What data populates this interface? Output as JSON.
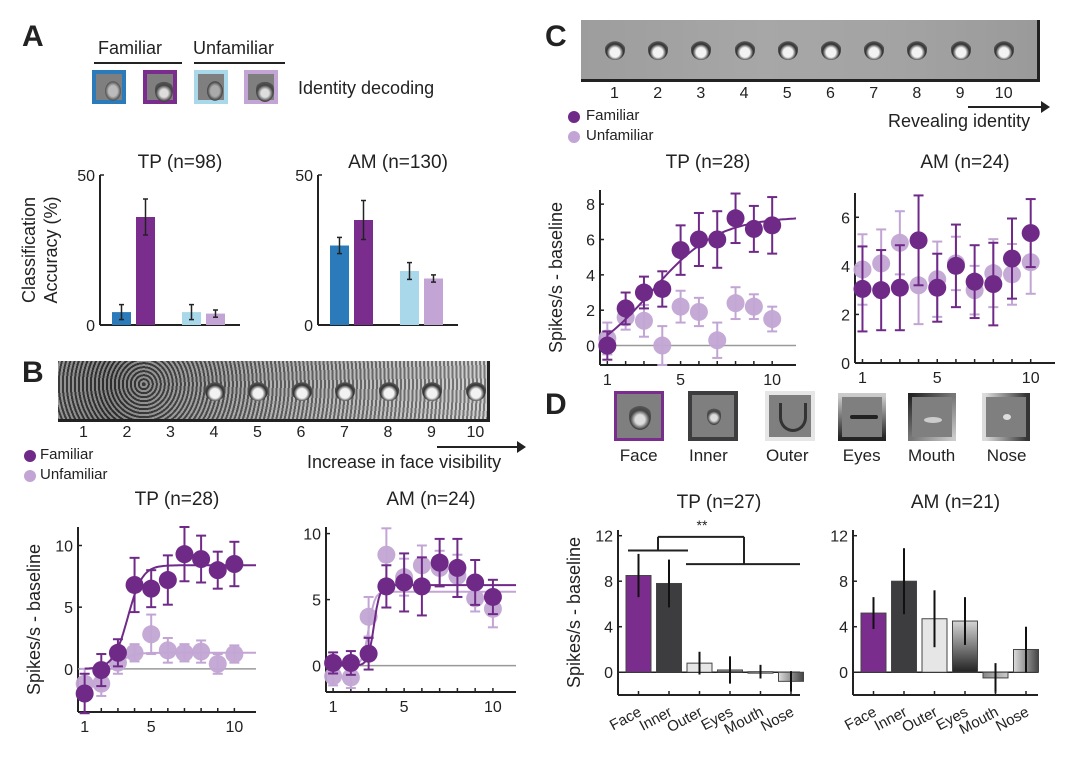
{
  "colors": {
    "familiar_human": "#2b7bba",
    "familiar_monkey": "#7b2d8e",
    "unfamiliar_human": "#a8d8ea",
    "unfamiliar_monkey": "#c2a5d4",
    "familiar_dot": "#6f2a88",
    "unfamiliar_dot": "#c2a5d4",
    "inner": "#3d3d40",
    "outer": "#e6e6e6",
    "baseline": "#999999"
  },
  "panelA": {
    "letter": "A",
    "group_familiar": "Familiar",
    "group_unfamiliar": "Unfamiliar",
    "task_label": "Identity decoding",
    "thumbs": [
      "human-face-icon",
      "monkey-face-icon",
      "human-face-icon",
      "monkey-face-icon"
    ]
  },
  "panelB": {
    "letter": "B",
    "strip_numbers": [
      "1",
      "2",
      "3",
      "4",
      "5",
      "6",
      "7",
      "8",
      "9",
      "10"
    ],
    "legend_familiar": "Familiar",
    "legend_unfamiliar": "Unfamiliar",
    "arrow_label": "Increase in face visibility"
  },
  "panelC": {
    "letter": "C",
    "strip_numbers": [
      "1",
      "2",
      "3",
      "4",
      "5",
      "6",
      "7",
      "8",
      "9",
      "10"
    ],
    "legend_familiar": "Familiar",
    "legend_unfamiliar": "Unfamiliar",
    "arrow_label": "Revealing identity"
  },
  "panelD": {
    "letter": "D",
    "part_labels": [
      "Face",
      "Inner",
      "Outer",
      "Eyes",
      "Mouth",
      "Nose"
    ],
    "significance": "**"
  },
  "chart_data": [
    {
      "id": "A-TP",
      "type": "bar",
      "title": "TP (n=98)",
      "ylabel": "Classification Accuracy (%)",
      "ylim": [
        0,
        50
      ],
      "yticks": [
        0,
        50
      ],
      "categories": [
        "Familiar human",
        "Familiar monkey",
        "Unfamiliar human",
        "Unfamiliar monkey"
      ],
      "values": [
        4.3,
        36,
        4.3,
        3.8
      ],
      "errors": [
        2.5,
        6,
        2.5,
        1.2
      ],
      "bar_colors": [
        "#2b7bba",
        "#7b2d8e",
        "#a8d8ea",
        "#c2a5d4"
      ]
    },
    {
      "id": "A-AM",
      "type": "bar",
      "title": "AM (n=130)",
      "ylabel": "",
      "ylim": [
        0,
        50
      ],
      "yticks": [
        0,
        50
      ],
      "categories": [
        "Familiar human",
        "Familiar monkey",
        "Unfamiliar human",
        "Unfamiliar monkey"
      ],
      "values": [
        26.5,
        35,
        18,
        15.5
      ],
      "errors": [
        2.7,
        6.5,
        2.8,
        1.2
      ],
      "bar_colors": [
        "#2b7bba",
        "#7b2d8e",
        "#a8d8ea",
        "#c2a5d4"
      ]
    },
    {
      "id": "B-TP",
      "type": "scatter",
      "title": "TP (n=28)",
      "ylabel": "Spikes/s - baseline",
      "xlim": [
        0.6,
        11.3
      ],
      "ylim": [
        -3.5,
        11.5
      ],
      "xticks": [
        1,
        5,
        10
      ],
      "yticks": [
        0,
        5,
        10
      ],
      "x": [
        1,
        2,
        3,
        4,
        5,
        6,
        7,
        8,
        9,
        10
      ],
      "series": [
        {
          "name": "Unfamiliar",
          "values": [
            -1.2,
            -1.2,
            0.5,
            1.3,
            2.8,
            1.5,
            1.3,
            1.4,
            0.4,
            1.2
          ],
          "errors": [
            1.2,
            1.0,
            0.9,
            0.7,
            1.6,
            1.0,
            0.7,
            0.9,
            0.8,
            0.7
          ],
          "fit": {
            "base": 0,
            "top": 1.3,
            "mid": 3.2,
            "slope": 2.5
          }
        },
        {
          "name": "Familiar",
          "values": [
            -2.0,
            -0.1,
            1.3,
            6.8,
            6.5,
            7.2,
            9.3,
            8.9,
            8.0,
            8.5
          ],
          "errors": [
            1.6,
            1.3,
            1.1,
            2.2,
            1.5,
            2.0,
            2.2,
            1.9,
            1.5,
            1.8
          ],
          "fit": {
            "base": 0,
            "top": 8.4,
            "mid": 3.6,
            "slope": 2.3
          }
        }
      ],
      "baseline": 0
    },
    {
      "id": "B-AM",
      "type": "scatter",
      "title": "AM (n=24)",
      "ylabel": "",
      "xlim": [
        0.6,
        11.3
      ],
      "ylim": [
        -2,
        10.5
      ],
      "xticks": [
        1,
        5,
        10
      ],
      "yticks": [
        0,
        5,
        10
      ],
      "x": [
        1,
        2,
        3,
        4,
        5,
        6,
        7,
        8,
        9,
        10
      ],
      "series": [
        {
          "name": "Unfamiliar",
          "values": [
            -0.8,
            -0.9,
            3.7,
            8.4,
            6.7,
            7.6,
            7.4,
            6.8,
            5.1,
            4.3
          ],
          "errors": [
            0.7,
            0.8,
            1.5,
            2.0,
            1.4,
            1.5,
            1.3,
            1.6,
            1.0,
            1.4
          ],
          "fit": {
            "base": 0,
            "top": 5.6,
            "mid": 3.0,
            "slope": 6
          }
        },
        {
          "name": "Familiar",
          "values": [
            0.2,
            0.2,
            0.9,
            6.0,
            6.3,
            6.0,
            7.8,
            7.4,
            6.3,
            5.2
          ],
          "errors": [
            0.8,
            0.9,
            1.2,
            1.6,
            2.2,
            2.2,
            1.8,
            2.2,
            1.7,
            1.3
          ],
          "fit": {
            "base": 0,
            "top": 6.1,
            "mid": 3.3,
            "slope": 6
          }
        }
      ],
      "baseline": 0
    },
    {
      "id": "C-TP",
      "type": "scatter",
      "title": "TP (n=28)",
      "ylabel": "Spikes/s - baseline",
      "xlim": [
        0.6,
        11.3
      ],
      "ylim": [
        -1.1,
        8.8
      ],
      "xticks": [
        1,
        5,
        10
      ],
      "yticks": [
        0,
        2,
        4,
        6,
        8
      ],
      "x": [
        1,
        2,
        3,
        4,
        5,
        6,
        7,
        8,
        9,
        10
      ],
      "series": [
        {
          "name": "Unfamiliar",
          "values": [
            0.4,
            1.6,
            1.4,
            0.0,
            2.2,
            1.9,
            0.3,
            2.4,
            2.2,
            1.5
          ],
          "errors": [
            0.9,
            0.7,
            0.9,
            1.1,
            0.9,
            0.8,
            1.0,
            0.9,
            0.7,
            0.7
          ]
        },
        {
          "name": "Familiar",
          "values": [
            0.0,
            2.1,
            3.0,
            3.2,
            5.4,
            6.0,
            6.0,
            7.2,
            6.6,
            6.8
          ],
          "errors": [
            0.8,
            0.9,
            0.9,
            1.0,
            1.4,
            1.5,
            1.6,
            1.4,
            1.3,
            1.6
          ],
          "fit": {
            "base": -1.2,
            "top": 7.3,
            "mid": 3.4,
            "slope": 0.55
          }
        }
      ],
      "baseline": 0
    },
    {
      "id": "C-AM",
      "type": "scatter",
      "title": "AM (n=24)",
      "ylabel": "",
      "xlim": [
        0.6,
        11.3
      ],
      "ylim": [
        0,
        7
      ],
      "xticks": [
        1,
        5,
        10
      ],
      "yticks": [
        0,
        2,
        4,
        6
      ],
      "x": [
        1,
        2,
        3,
        4,
        5,
        6,
        7,
        8,
        9,
        10
      ],
      "series": [
        {
          "name": "Unfamiliar",
          "values": [
            3.85,
            4.1,
            4.95,
            3.2,
            3.45,
            4.1,
            3.0,
            3.7,
            3.65,
            4.15
          ],
          "errors": [
            1.45,
            1.4,
            1.3,
            1.6,
            1.55,
            1.1,
            1.0,
            1.4,
            1.25,
            1.3
          ]
        },
        {
          "name": "Familiar",
          "values": [
            3.05,
            3.0,
            3.1,
            5.05,
            3.1,
            4.0,
            3.35,
            3.25,
            4.3,
            5.35
          ],
          "errors": [
            1.75,
            1.65,
            1.75,
            1.85,
            1.4,
            1.7,
            1.5,
            1.7,
            1.65,
            1.4
          ]
        }
      ]
    },
    {
      "id": "D-TP",
      "type": "bar",
      "title": "TP (n=27)",
      "ylabel": "Spikes/s - baseline",
      "ylim": [
        -2,
        12.5
      ],
      "yticks": [
        0,
        4,
        8,
        12
      ],
      "categories": [
        "Face",
        "Inner",
        "Outer",
        "Eyes",
        "Mouth",
        "Nose"
      ],
      "values": [
        8.5,
        7.8,
        0.8,
        0.2,
        0.05,
        -0.8
      ],
      "errors": [
        1.9,
        2.1,
        1.0,
        1.2,
        0.6,
        0.9
      ],
      "annotation": "**"
    },
    {
      "id": "D-AM",
      "type": "bar",
      "title": "AM (n=21)",
      "ylabel": "",
      "ylim": [
        -2,
        12.5
      ],
      "yticks": [
        0,
        4,
        8,
        12
      ],
      "categories": [
        "Face",
        "Inner",
        "Outer",
        "Eyes",
        "Mouth",
        "Nose"
      ],
      "values": [
        5.2,
        8.0,
        4.7,
        4.5,
        -0.5,
        2.0
      ],
      "errors": [
        1.4,
        2.9,
        2.5,
        2.1,
        1.3,
        2.0
      ]
    }
  ]
}
